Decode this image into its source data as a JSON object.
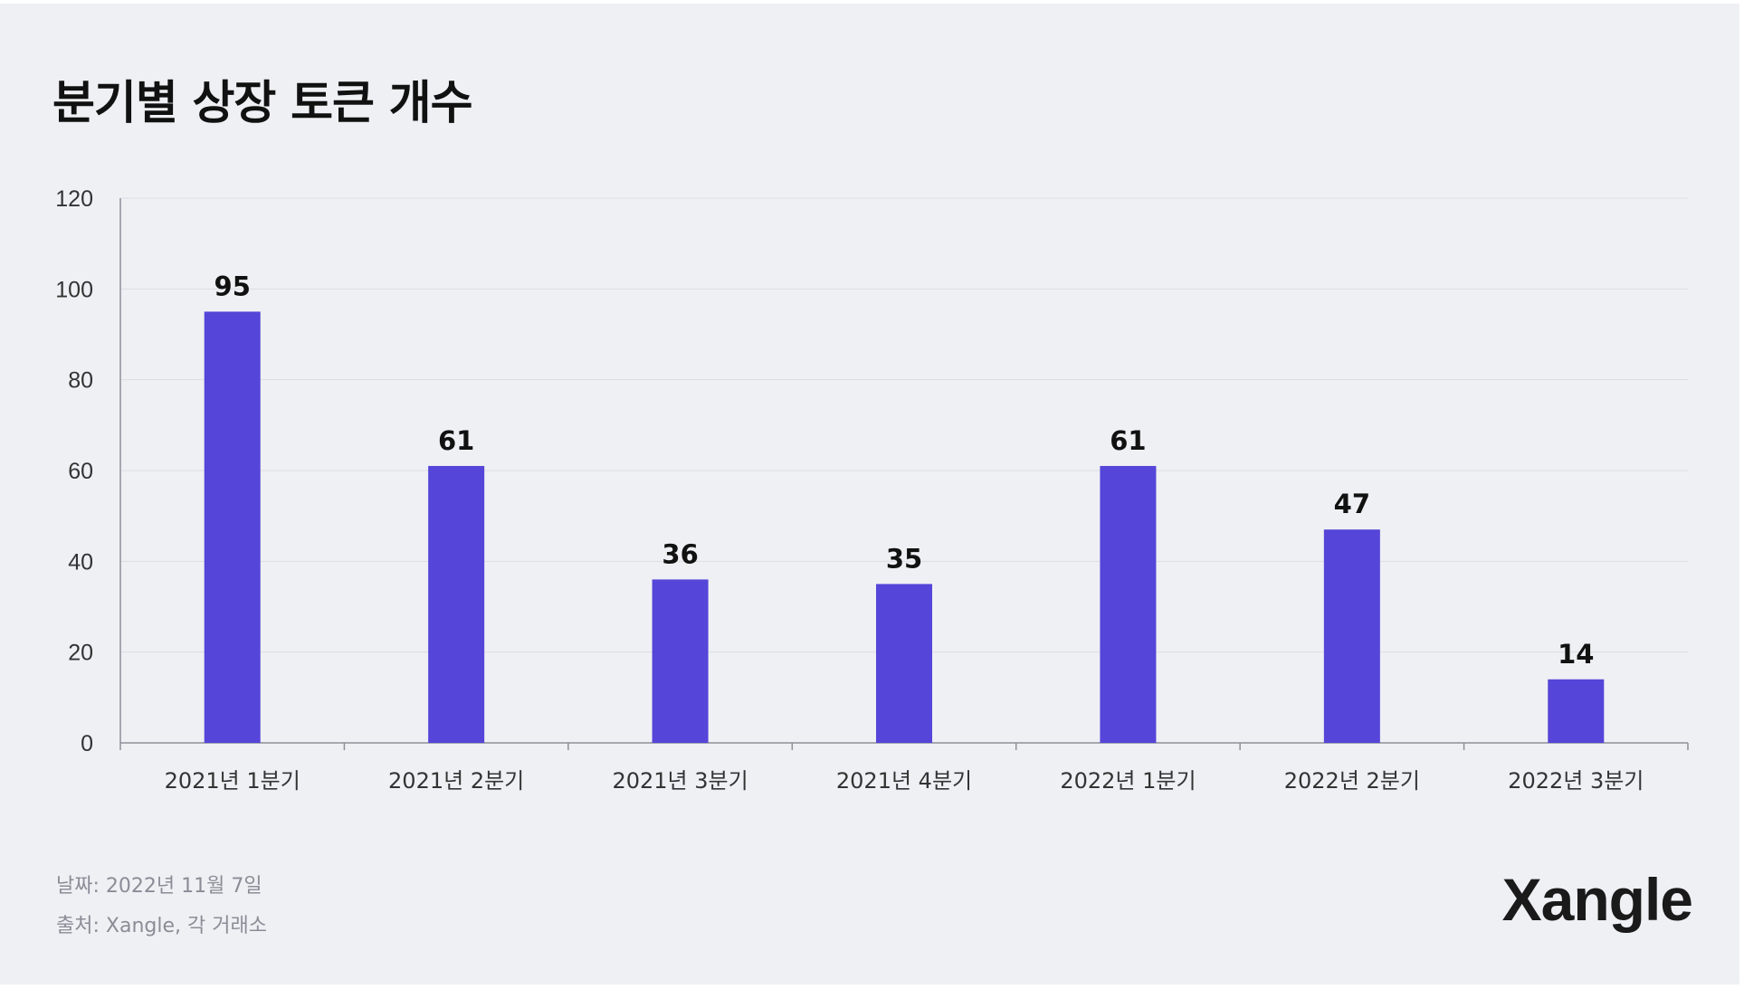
{
  "title": "분기별 상장 토큰 개수",
  "chart_data": {
    "type": "bar",
    "categories": [
      "2021년 1분기",
      "2021년 2분기",
      "2021년 3분기",
      "2021년 4분기",
      "2022년 1분기",
      "2022년 2분기",
      "2022년 3분기"
    ],
    "values": [
      95,
      61,
      36,
      35,
      61,
      47,
      14
    ],
    "yticks": [
      0,
      20,
      40,
      60,
      80,
      100,
      120
    ],
    "ylim": [
      0,
      120
    ],
    "grid": true,
    "bar_color": "#5545d8",
    "xlabel": "",
    "ylabel": ""
  },
  "footer": {
    "date": "날짜: 2022년 11월 7일",
    "source": "출처: Xangle, 각 거래소"
  },
  "brand": "Xangle"
}
